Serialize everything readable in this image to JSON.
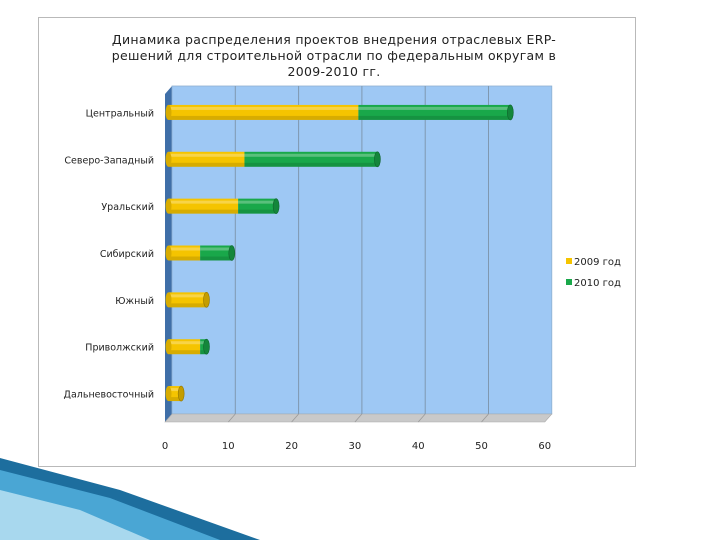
{
  "chart_data": {
    "type": "bar",
    "orientation": "horizontal",
    "stacked": true,
    "title": "Динамика распределения проектов внедрения отраслевых ERP-решений для строительной отрасли по федеральным округам в 2009-2010 гг.",
    "categories": [
      "Центральный",
      "Северо-Западный",
      "Уральский",
      "Сибирский",
      "Южный",
      "Приволжский",
      "Дальневосточный"
    ],
    "series": [
      {
        "name": "2009 год",
        "values": [
          30,
          12,
          11,
          5,
          6,
          5,
          2
        ],
        "color": "#f5c400"
      },
      {
        "name": "2010 год",
        "values": [
          24,
          21,
          6,
          5,
          0,
          1,
          0
        ],
        "color": "#19a84a"
      }
    ],
    "xlim": [
      0,
      60
    ],
    "xticks": [
      "0",
      "10",
      "20",
      "30",
      "40",
      "50",
      "60"
    ],
    "grid": true,
    "legend_position": "right",
    "plot_background": "#9ec8f4",
    "gridline_color": "#7f98b0"
  }
}
